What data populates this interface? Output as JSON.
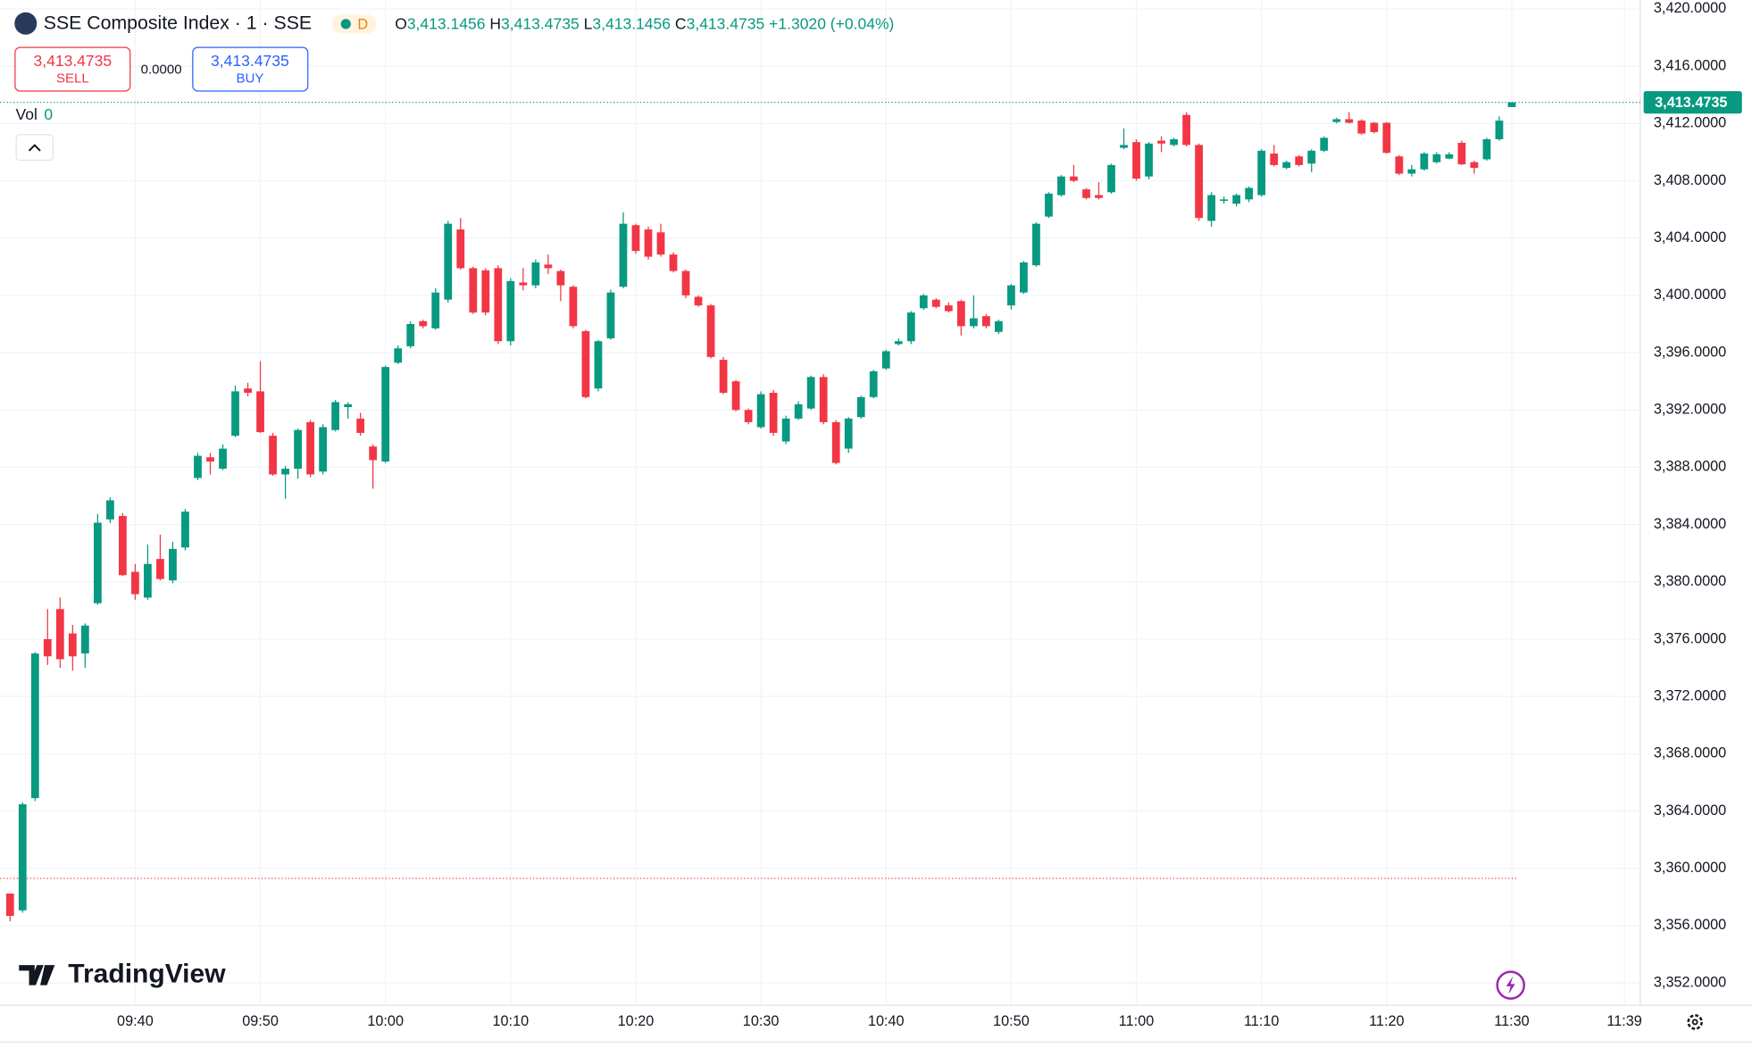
{
  "header": {
    "title": "SSE Composite Index · 1 · SSE",
    "badge": "D",
    "ohlc": [
      {
        "key": "O",
        "value": "3,413.1456"
      },
      {
        "key": "H",
        "value": "3,413.4735"
      },
      {
        "key": "L",
        "value": "3,413.1456"
      },
      {
        "key": "C",
        "value": "3,413.4735"
      }
    ],
    "change": "+1.3020 (+0.04%)"
  },
  "trade": {
    "sell_price": "3,413.4735",
    "sell": "SELL",
    "spread": "0.0000",
    "buy_price": "3,413.4735",
    "buy": "BUY"
  },
  "volume": {
    "label": "Vol",
    "value": "0"
  },
  "logo": "TradingView",
  "chart_data": {
    "type": "candlestick",
    "up_color": "#089981",
    "down_color": "#f23645",
    "x": [
      "09:30",
      "09:31",
      "09:32",
      "09:33",
      "09:34",
      "09:35",
      "09:36",
      "09:37",
      "09:38",
      "09:39",
      "09:40",
      "09:41",
      "09:42",
      "09:43",
      "09:44",
      "09:45",
      "09:46",
      "09:47",
      "09:48",
      "09:49",
      "09:50",
      "09:51",
      "09:52",
      "09:53",
      "09:54",
      "09:55",
      "09:56",
      "09:57",
      "09:58",
      "09:59",
      "10:00",
      "10:01",
      "10:02",
      "10:03",
      "10:04",
      "10:05",
      "10:06",
      "10:07",
      "10:08",
      "10:09",
      "10:10",
      "10:11",
      "10:12",
      "10:13",
      "10:14",
      "10:15",
      "10:16",
      "10:17",
      "10:18",
      "10:19",
      "10:20",
      "10:21",
      "10:22",
      "10:23",
      "10:24",
      "10:25",
      "10:26",
      "10:27",
      "10:28",
      "10:29",
      "10:30",
      "10:31",
      "10:32",
      "10:33",
      "10:34",
      "10:35",
      "10:36",
      "10:37",
      "10:38",
      "10:39",
      "10:40",
      "10:41",
      "10:42",
      "10:43",
      "10:44",
      "10:45",
      "10:46",
      "10:47",
      "10:48",
      "10:49",
      "10:50",
      "10:51",
      "10:52",
      "10:53",
      "10:54",
      "10:55",
      "10:56",
      "10:57",
      "10:58",
      "10:59",
      "11:00",
      "11:01",
      "11:02",
      "11:03",
      "11:04",
      "11:05",
      "11:06",
      "11:07",
      "11:08",
      "11:09",
      "11:10",
      "11:11",
      "11:12",
      "11:13",
      "11:14",
      "11:15",
      "11:16",
      "11:17",
      "11:18",
      "11:19",
      "11:20",
      "11:21",
      "11:22",
      "11:23",
      "11:24",
      "11:25",
      "11:26",
      "11:27",
      "11:28",
      "11:29",
      "11:30"
    ],
    "open": [
      3358.24,
      3357.07,
      3364.9,
      3376.0,
      3378.1,
      3376.4,
      3375.0,
      3378.51,
      3384.36,
      3384.6,
      3380.7,
      3378.9,
      3381.6,
      3380.1,
      3382.4,
      3387.25,
      3388.7,
      3387.9,
      3390.2,
      3393.5,
      3393.3,
      3390.2,
      3387.5,
      3387.9,
      3391.15,
      3387.7,
      3390.6,
      3392.2,
      3391.4,
      3389.45,
      3388.4,
      3395.3,
      3396.45,
      3398.2,
      3397.7,
      3399.7,
      3404.6,
      3401.9,
      3401.75,
      3401.9,
      3396.8,
      3400.9,
      3400.7,
      3402.15,
      3401.7,
      3400.6,
      3397.5,
      3393.5,
      3397.0,
      3400.6,
      3404.9,
      3404.6,
      3404.4,
      3402.85,
      3401.7,
      3399.9,
      3399.3,
      3395.5,
      3394.0,
      3392.0,
      3390.8,
      3393.2,
      3389.8,
      3391.4,
      3392.1,
      3394.3,
      3391.15,
      3389.3,
      3391.5,
      3392.9,
      3394.9,
      3396.6,
      3396.8,
      3399.1,
      3399.7,
      3399.3,
      3399.6,
      3397.85,
      3398.55,
      3397.45,
      3399.3,
      3400.2,
      3402.1,
      3405.5,
      3407.0,
      3408.3,
      3407.4,
      3407.0,
      3407.2,
      3410.3,
      3410.7,
      3408.3,
      3410.8,
      3410.5,
      3412.6,
      3410.5,
      3405.2,
      3406.6,
      3406.4,
      3406.7,
      3407.0,
      3409.9,
      3408.9,
      3409.7,
      3409.2,
      3410.1,
      3412.1,
      3412.3,
      3412.2,
      3412.05,
      3412.05,
      3409.7,
      3408.5,
      3408.8,
      3409.3,
      3409.55,
      3410.65,
      3409.3,
      3409.5,
      3410.9,
      3413.1456
    ],
    "high": [
      3358.24,
      3364.6,
      3375.1,
      3378.1,
      3378.9,
      3377.0,
      3377.1,
      3384.75,
      3385.9,
      3384.8,
      3381.25,
      3382.6,
      3383.3,
      3382.8,
      3385.1,
      3389.0,
      3389.0,
      3389.6,
      3393.7,
      3393.9,
      3395.4,
      3390.4,
      3388.1,
      3390.7,
      3391.3,
      3391.0,
      3392.7,
      3392.55,
      3391.8,
      3389.6,
      3395.1,
      3396.5,
      3398.2,
      3398.3,
      3400.5,
      3405.2,
      3405.4,
      3402.0,
      3401.9,
      3402.1,
      3401.2,
      3401.9,
      3402.5,
      3402.85,
      3401.8,
      3400.7,
      3397.6,
      3396.9,
      3400.4,
      3405.8,
      3405.0,
      3404.8,
      3405.0,
      3403.0,
      3401.8,
      3400.0,
      3399.4,
      3395.7,
      3394.1,
      3392.1,
      3393.3,
      3393.4,
      3391.6,
      3392.6,
      3394.4,
      3394.5,
      3391.3,
      3391.5,
      3393.0,
      3394.8,
      3396.2,
      3397.0,
      3398.9,
      3400.1,
      3399.8,
      3399.5,
      3399.7,
      3400.0,
      3398.7,
      3398.3,
      3400.8,
      3402.4,
      3405.1,
      3407.2,
      3408.4,
      3409.1,
      3407.5,
      3407.9,
      3409.2,
      3411.65,
      3410.9,
      3410.7,
      3411.1,
      3411.0,
      3412.8,
      3410.6,
      3407.2,
      3406.9,
      3407.1,
      3407.6,
      3410.2,
      3410.5,
      3409.4,
      3409.8,
      3410.2,
      3411.1,
      3412.4,
      3412.8,
      3412.3,
      3412.1,
      3412.1,
      3409.8,
      3409.1,
      3410.0,
      3410.0,
      3410.0,
      3410.8,
      3409.4,
      3411.0,
      3412.5,
      3413.4735
    ],
    "low": [
      3356.3,
      3356.9,
      3364.7,
      3374.2,
      3374.0,
      3373.8,
      3374.0,
      3378.4,
      3384.1,
      3380.4,
      3378.75,
      3378.75,
      3380.1,
      3379.9,
      3382.2,
      3387.1,
      3387.5,
      3387.8,
      3390.1,
      3392.95,
      3390.4,
      3387.4,
      3385.8,
      3387.2,
      3387.3,
      3387.5,
      3390.5,
      3391.4,
      3390.2,
      3386.5,
      3388.3,
      3395.2,
      3396.3,
      3397.7,
      3397.6,
      3399.5,
      3401.8,
      3398.7,
      3398.6,
      3396.6,
      3396.5,
      3400.35,
      3400.5,
      3401.5,
      3399.6,
      3397.7,
      3392.8,
      3393.3,
      3396.9,
      3400.5,
      3402.9,
      3402.5,
      3402.7,
      3401.6,
      3399.8,
      3399.2,
      3395.6,
      3393.1,
      3391.9,
      3391.0,
      3390.7,
      3390.2,
      3389.6,
      3391.3,
      3392.0,
      3391.0,
      3388.2,
      3389.0,
      3391.4,
      3392.8,
      3394.8,
      3396.5,
      3396.6,
      3399.0,
      3399.1,
      3398.8,
      3397.2,
      3397.7,
      3397.7,
      3397.3,
      3399.0,
      3400.1,
      3402.0,
      3405.4,
      3406.9,
      3407.9,
      3406.7,
      3406.7,
      3407.1,
      3410.2,
      3408.0,
      3408.1,
      3410.0,
      3410.4,
      3410.4,
      3405.2,
      3404.8,
      3406.4,
      3406.2,
      3406.5,
      3406.9,
      3409.0,
      3408.8,
      3409.0,
      3408.6,
      3410.0,
      3412.0,
      3412.0,
      3411.2,
      3411.3,
      3409.9,
      3408.4,
      3408.3,
      3408.7,
      3409.2,
      3409.5,
      3409.1,
      3408.5,
      3409.4,
      3410.8,
      3413.1456
    ],
    "close": [
      3356.68,
      3364.47,
      3375.0,
      3374.8,
      3374.6,
      3374.8,
      3376.95,
      3384.13,
      3385.69,
      3380.47,
      3379.14,
      3381.25,
      3380.2,
      3382.3,
      3384.9,
      3388.8,
      3388.4,
      3389.3,
      3393.3,
      3393.2,
      3390.45,
      3387.5,
      3387.9,
      3390.6,
      3387.5,
      3390.8,
      3392.55,
      3392.4,
      3390.4,
      3388.5,
      3395.0,
      3396.3,
      3398.0,
      3397.85,
      3400.2,
      3405.0,
      3401.9,
      3398.8,
      3398.8,
      3396.8,
      3401.0,
      3400.7,
      3402.3,
      3401.9,
      3400.7,
      3397.85,
      3392.9,
      3396.8,
      3400.2,
      3405.0,
      3403.1,
      3402.7,
      3402.85,
      3401.7,
      3400.0,
      3399.3,
      3395.7,
      3393.2,
      3392.0,
      3391.15,
      3393.1,
      3390.4,
      3391.4,
      3392.4,
      3394.3,
      3391.15,
      3388.3,
      3391.4,
      3392.9,
      3394.7,
      3396.1,
      3396.8,
      3398.8,
      3400.0,
      3399.2,
      3398.9,
      3397.85,
      3398.4,
      3397.85,
      3398.2,
      3400.7,
      3402.3,
      3405.0,
      3407.1,
      3408.3,
      3408.0,
      3406.8,
      3406.8,
      3409.1,
      3410.5,
      3408.15,
      3410.6,
      3410.6,
      3410.9,
      3410.5,
      3405.4,
      3407.0,
      3406.7,
      3407.0,
      3407.5,
      3410.1,
      3409.1,
      3409.3,
      3409.1,
      3410.1,
      3411.0,
      3412.3,
      3412.05,
      3411.3,
      3411.4,
      3409.95,
      3408.5,
      3408.8,
      3409.9,
      3409.85,
      3409.85,
      3409.15,
      3408.9,
      3410.9,
      3412.2,
      3413.4735
    ],
    "xlim": [
      "09:30",
      "11:40"
    ],
    "xticks": [
      "09:40",
      "09:50",
      "10:00",
      "10:10",
      "10:20",
      "10:30",
      "10:40",
      "10:50",
      "11:00",
      "11:10",
      "11:20",
      "11:30",
      "11:39"
    ],
    "ylim": [
      3350.44,
      3420.62
    ],
    "yticks": [
      {
        "value": 3352,
        "label": "3,352.0000"
      },
      {
        "value": 3356,
        "label": "3,356.0000"
      },
      {
        "value": 3360,
        "label": "3,360.0000"
      },
      {
        "value": 3364,
        "label": "3,364.0000"
      },
      {
        "value": 3368,
        "label": "3,368.0000"
      },
      {
        "value": 3372,
        "label": "3,372.0000"
      },
      {
        "value": 3376,
        "label": "3,376.0000"
      },
      {
        "value": 3380,
        "label": "3,380.0000"
      },
      {
        "value": 3384,
        "label": "3,384.0000"
      },
      {
        "value": 3388,
        "label": "3,388.0000"
      },
      {
        "value": 3392,
        "label": "3,392.0000"
      },
      {
        "value": 3396,
        "label": "3,396.0000"
      },
      {
        "value": 3400,
        "label": "3,400.0000"
      },
      {
        "value": 3404,
        "label": "3,404.0000"
      },
      {
        "value": 3408,
        "label": "3,408.0000"
      },
      {
        "value": 3412,
        "label": "3,412.0000"
      },
      {
        "value": 3416,
        "label": "3,416.0000"
      },
      {
        "value": 3420,
        "label": "3,420.0000"
      }
    ],
    "grid": true,
    "last_price": {
      "value": 3413.4735,
      "label": "3,413.4735"
    },
    "previous_close": 3359.3
  }
}
